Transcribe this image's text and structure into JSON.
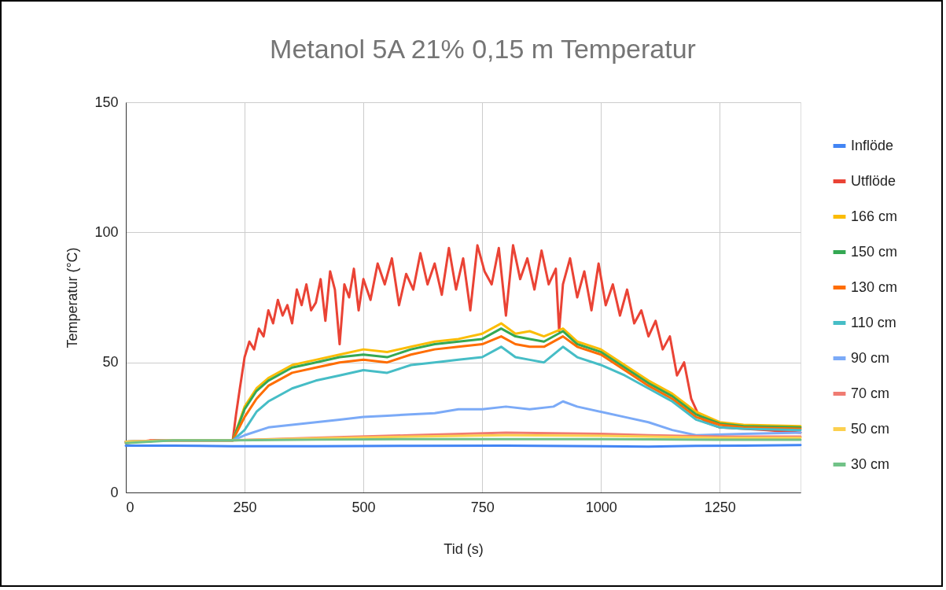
{
  "chart_data": {
    "type": "line",
    "title": "Metanol 5A 21% 0,15 m Temperatur",
    "xlabel": "Tid (s)",
    "ylabel": "Temperatur (°C)",
    "xlim": [
      0,
      1420
    ],
    "xticks": [
      0,
      250,
      500,
      750,
      1000,
      1250
    ],
    "ylim": [
      0,
      150
    ],
    "yticks": [
      0,
      50,
      100,
      150
    ],
    "grid": true,
    "legend": "right",
    "marker": "none",
    "line_style": "solid",
    "series": [
      {
        "name": "Inflöde",
        "color": "#4285f4",
        "x": [
          0,
          100,
          225,
          400,
          600,
          800,
          1000,
          1100,
          1200,
          1300,
          1420
        ],
        "values": [
          18,
          18,
          17.8,
          17.8,
          17.9,
          18,
          17.8,
          17.6,
          17.9,
          18,
          18.2
        ]
      },
      {
        "name": "Utflöde",
        "color": "#ea4335",
        "x": [
          0,
          50,
          100,
          225,
          232,
          240,
          250,
          260,
          270,
          280,
          290,
          300,
          310,
          320,
          330,
          340,
          350,
          360,
          370,
          380,
          390,
          400,
          410,
          420,
          430,
          440,
          450,
          460,
          470,
          480,
          490,
          500,
          515,
          530,
          545,
          560,
          575,
          590,
          605,
          620,
          635,
          650,
          665,
          680,
          695,
          710,
          725,
          740,
          755,
          770,
          785,
          800,
          815,
          830,
          845,
          860,
          875,
          890,
          905,
          912,
          920,
          935,
          950,
          965,
          980,
          995,
          1010,
          1025,
          1040,
          1055,
          1070,
          1085,
          1100,
          1115,
          1130,
          1145,
          1160,
          1175,
          1190,
          1205,
          1220,
          1235,
          1250,
          1300,
          1350,
          1420
        ],
        "values": [
          19,
          20,
          20,
          20,
          30,
          40,
          52,
          58,
          55,
          63,
          60,
          70,
          65,
          74,
          68,
          72,
          65,
          78,
          72,
          80,
          70,
          73,
          82,
          66,
          85,
          78,
          57,
          80,
          75,
          86,
          70,
          82,
          74,
          88,
          80,
          90,
          72,
          84,
          78,
          92,
          80,
          88,
          76,
          94,
          78,
          90,
          70,
          95,
          85,
          80,
          94,
          68,
          95,
          82,
          90,
          78,
          93,
          80,
          86,
          62,
          80,
          90,
          75,
          85,
          70,
          88,
          72,
          80,
          68,
          78,
          65,
          70,
          60,
          66,
          55,
          60,
          45,
          50,
          36,
          30,
          27,
          26,
          25,
          24.5,
          24,
          23
        ]
      },
      {
        "name": "166 cm",
        "color": "#fbbc04",
        "x": [
          0,
          100,
          225,
          250,
          275,
          300,
          350,
          400,
          450,
          500,
          550,
          600,
          650,
          700,
          750,
          790,
          820,
          850,
          880,
          920,
          950,
          1000,
          1050,
          1100,
          1150,
          1200,
          1250,
          1300,
          1420
        ],
        "values": [
          19.5,
          20,
          20,
          33,
          40,
          44,
          49,
          51,
          53,
          55,
          54,
          56,
          58,
          59,
          61,
          65,
          61,
          62,
          60,
          63,
          58,
          55,
          49,
          43,
          38,
          31,
          27,
          26,
          25.5
        ]
      },
      {
        "name": "150 cm",
        "color": "#34a853",
        "x": [
          0,
          100,
          225,
          250,
          275,
          300,
          350,
          400,
          450,
          500,
          550,
          600,
          650,
          700,
          750,
          790,
          820,
          850,
          880,
          920,
          950,
          1000,
          1050,
          1100,
          1150,
          1200,
          1250,
          1300,
          1420
        ],
        "values": [
          19.5,
          20,
          20,
          32,
          39,
          43,
          48,
          50,
          52,
          53,
          52,
          55,
          57,
          58,
          59,
          63,
          60,
          59,
          58,
          62,
          57,
          54,
          48,
          42,
          37,
          30,
          26.5,
          25.5,
          25
        ]
      },
      {
        "name": "130 cm",
        "color": "#ff6d01",
        "x": [
          0,
          100,
          225,
          250,
          275,
          300,
          350,
          400,
          450,
          500,
          550,
          600,
          650,
          700,
          750,
          790,
          820,
          850,
          880,
          920,
          950,
          1000,
          1050,
          1100,
          1150,
          1200,
          1250,
          1300,
          1420
        ],
        "values": [
          19.5,
          20,
          20,
          29,
          36,
          41,
          46,
          48,
          50,
          51,
          50,
          53,
          55,
          56,
          57,
          60,
          57,
          56,
          56,
          60,
          56,
          53,
          47,
          41,
          36,
          29,
          26,
          25,
          24.5
        ]
      },
      {
        "name": "110 cm",
        "color": "#46bdc6",
        "x": [
          0,
          100,
          225,
          250,
          275,
          300,
          350,
          400,
          450,
          500,
          550,
          600,
          650,
          700,
          750,
          790,
          820,
          850,
          880,
          920,
          950,
          1000,
          1050,
          1100,
          1150,
          1200,
          1250,
          1300,
          1420
        ],
        "values": [
          19.5,
          20,
          20,
          24,
          31,
          35,
          40,
          43,
          45,
          47,
          46,
          49,
          50,
          51,
          52,
          56,
          52,
          51,
          50,
          56,
          52,
          49,
          45,
          40,
          35,
          28,
          25,
          24.5,
          24
        ]
      },
      {
        "name": "90 cm",
        "color": "#7baaf7",
        "x": [
          0,
          100,
          225,
          250,
          300,
          350,
          400,
          450,
          500,
          550,
          600,
          650,
          700,
          750,
          800,
          850,
          900,
          920,
          950,
          1000,
          1050,
          1100,
          1150,
          1200,
          1300,
          1420
        ],
        "values": [
          19.5,
          20,
          20,
          22,
          25,
          26,
          27,
          28,
          29,
          29.5,
          30,
          30.5,
          32,
          32,
          33,
          32,
          33,
          35,
          33,
          31,
          29,
          27,
          24,
          22,
          22.5,
          23
        ]
      },
      {
        "name": "70 cm",
        "color": "#f07b72",
        "x": [
          0,
          100,
          225,
          400,
          600,
          800,
          1000,
          1100,
          1250,
          1420
        ],
        "values": [
          19.5,
          20,
          20,
          21,
          22,
          23,
          22.5,
          22,
          21.5,
          21.5
        ]
      },
      {
        "name": "50 cm",
        "color": "#fcd04f",
        "x": [
          0,
          100,
          225,
          400,
          600,
          800,
          1000,
          1100,
          1250,
          1420
        ],
        "values": [
          19.5,
          20,
          20,
          20.8,
          21.5,
          22,
          21.8,
          21.5,
          21,
          21
        ]
      },
      {
        "name": "30 cm",
        "color": "#71c287",
        "x": [
          0,
          100,
          225,
          400,
          600,
          800,
          1000,
          1100,
          1250,
          1420
        ],
        "values": [
          19,
          20,
          20,
          20.3,
          20.5,
          20.5,
          20.5,
          20.4,
          20.3,
          20.3
        ]
      }
    ]
  }
}
